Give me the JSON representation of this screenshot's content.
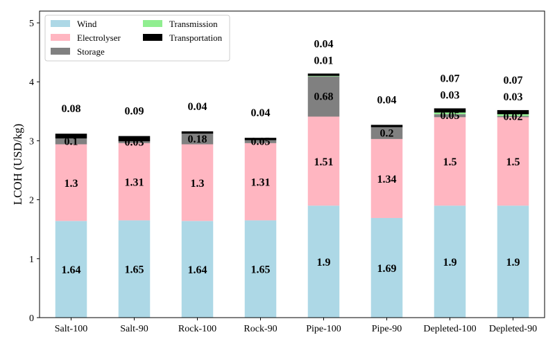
{
  "chart_data": {
    "type": "bar",
    "stacked": true,
    "categories": [
      "Salt-100",
      "Salt-90",
      "Rock-100",
      "Rock-90",
      "Pipe-100",
      "Pipe-90",
      "Depleted-100",
      "Depleted-90"
    ],
    "ylabel": "LCOH (USD/kg)",
    "xlabel": "",
    "ylim": [
      0,
      5.2
    ],
    "yticks": [
      "0",
      "1",
      "2",
      "3",
      "4",
      "5"
    ],
    "legend_position": "top-left",
    "series": [
      {
        "name": "Wind",
        "color": "#add8e6",
        "values": [
          1.64,
          1.65,
          1.64,
          1.65,
          1.9,
          1.69,
          1.9,
          1.9
        ],
        "labels": [
          "1.64",
          "1.65",
          "1.64",
          "1.65",
          "1.9",
          "1.69",
          "1.9",
          "1.9"
        ]
      },
      {
        "name": "Electrolyser",
        "color": "#ffb6c1",
        "values": [
          1.3,
          1.31,
          1.3,
          1.31,
          1.51,
          1.34,
          1.5,
          1.5
        ],
        "labels": [
          "1.3",
          "1.31",
          "1.3",
          "1.31",
          "1.51",
          "1.34",
          "1.5",
          "1.5"
        ]
      },
      {
        "name": "Storage",
        "color": "#808080",
        "values": [
          0.1,
          0.03,
          0.18,
          0.05,
          0.68,
          0.2,
          0.05,
          0.02
        ],
        "labels": [
          "0.1",
          "0.03",
          "0.18",
          "0.05",
          "0.68",
          "0.2",
          "0.05",
          "0.02"
        ]
      },
      {
        "name": "Transmission",
        "color": "#90ee90",
        "values": [
          0,
          0,
          0,
          0,
          0.01,
          0,
          0.03,
          0.03
        ],
        "labels": [
          "",
          "",
          "",
          "",
          "0.01",
          "",
          "0.03",
          "0.03"
        ]
      },
      {
        "name": "Transportation",
        "color": "#000000",
        "values": [
          0.08,
          0.09,
          0.04,
          0.04,
          0.04,
          0.04,
          0.07,
          0.07
        ],
        "labels": [
          "0.08",
          "0.09",
          "0.04",
          "0.04",
          "0.04",
          "0.04",
          "0.07",
          "0.07"
        ]
      }
    ]
  }
}
